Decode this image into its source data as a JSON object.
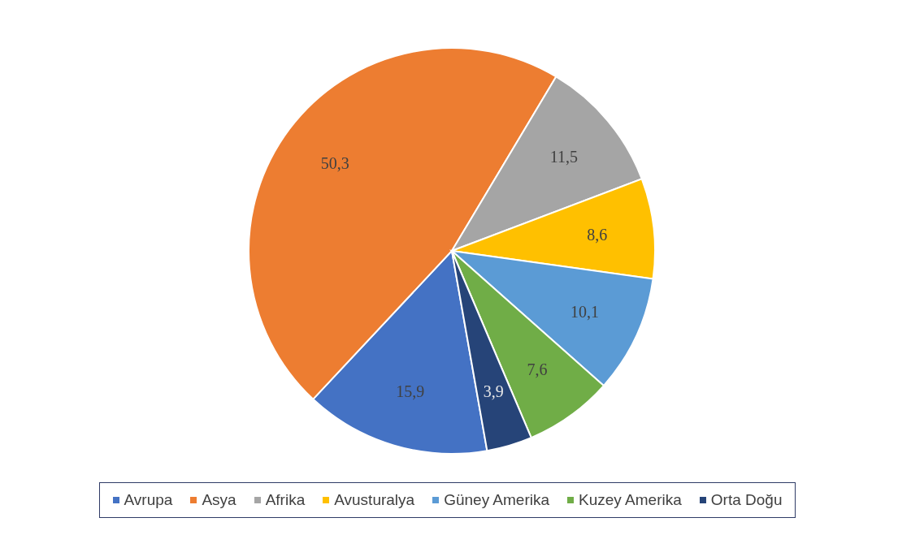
{
  "chart_data": {
    "type": "pie",
    "categories": [
      "Avrupa",
      "Asya",
      "Afrika",
      "Avusturalya",
      "Güney Amerika",
      "Kuzey Amerika",
      "Orta Doğu"
    ],
    "values": [
      15.9,
      50.3,
      11.5,
      8.6,
      10.1,
      7.6,
      3.9
    ],
    "value_labels": [
      "15,9",
      "50,3",
      "11,5",
      "8,6",
      "10,1",
      "7,6",
      "3,9"
    ],
    "colors": [
      "#4472c4",
      "#ed7d31",
      "#a5a5a5",
      "#ffc000",
      "#5b9bd5",
      "#70ad47",
      "#264478"
    ],
    "legend": "bottom"
  }
}
